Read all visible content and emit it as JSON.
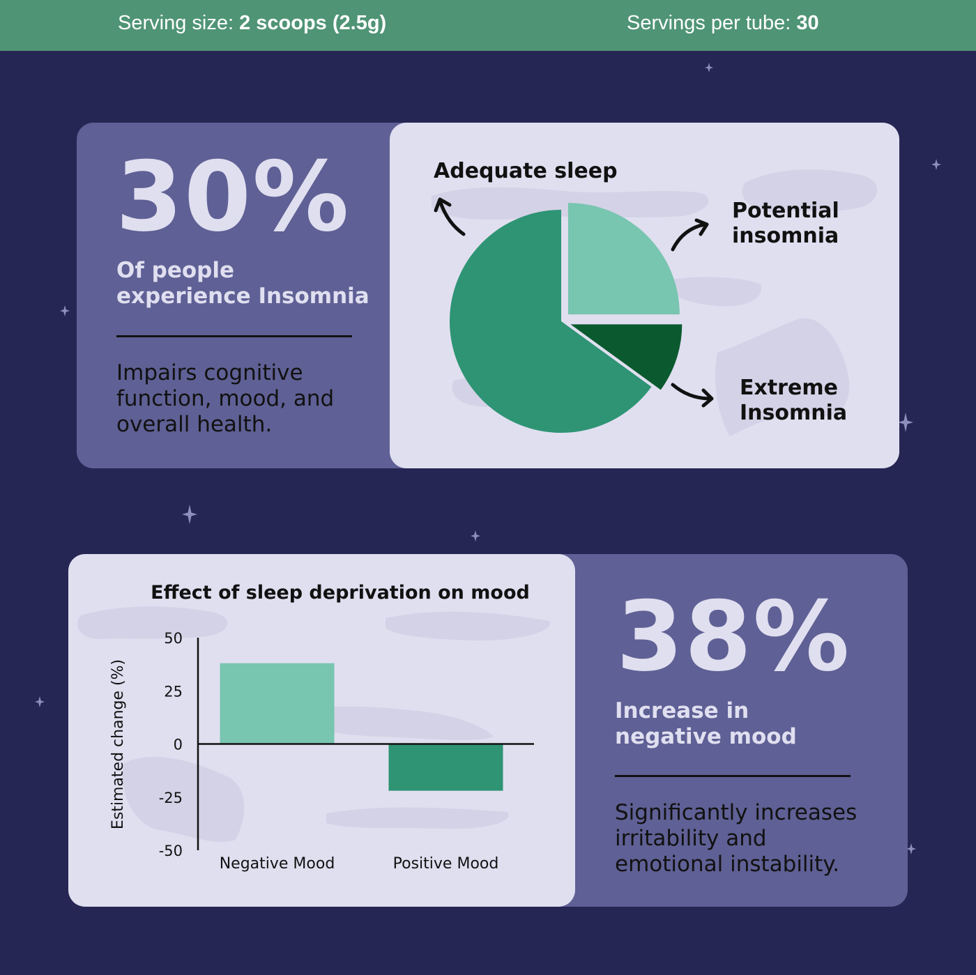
{
  "header": {
    "serving_size_label": "Serving size:",
    "serving_size_value": "2 scoops (2.5g)",
    "servings_label": "Servings per tube:",
    "servings_value": "30"
  },
  "insomnia_card": {
    "big_number": "30%",
    "subtitle_line1": "Of people",
    "subtitle_line2": "experience Insomnia",
    "body_line1": "Impairs cognitive",
    "body_line2": "function, mood, and",
    "body_line3": "overall health."
  },
  "mood_card": {
    "big_number": "38%",
    "subtitle_line1": "Increase in",
    "subtitle_line2": "negative mood",
    "body_line1": "Significantly increases",
    "body_line2": "irritability and",
    "body_line3": "emotional instability."
  },
  "colors": {
    "background": "#252653",
    "header": "#4f9475",
    "card_dark": "#5f6095",
    "card_light": "#e0dff0",
    "green_light": "#78c5b0",
    "green_mid": "#2e9474",
    "green_dark": "#0b5a2f"
  },
  "chart_data": [
    {
      "type": "pie",
      "labels": [
        "Adequate sleep",
        "Potential insomnia",
        "Extreme Insomnia"
      ],
      "label_lines": [
        [
          "Adequate sleep"
        ],
        [
          "Potential",
          "insomnia"
        ],
        [
          "Extreme",
          "Insomnia"
        ]
      ],
      "values": [
        65,
        25,
        10
      ],
      "colors": [
        "#2e9474",
        "#78c5b0",
        "#0b5a2f"
      ]
    },
    {
      "type": "bar",
      "title": "Effect of sleep deprivation on mood",
      "ylabel": "Estimated change (%)",
      "categories": [
        "Negative Mood",
        "Positive Mood"
      ],
      "values": [
        38,
        -22
      ],
      "colors": [
        "#78c5b0",
        "#2e9474"
      ],
      "ylim": [
        -50,
        50
      ],
      "yticks": [
        50,
        25,
        0,
        -25,
        -50
      ]
    }
  ]
}
